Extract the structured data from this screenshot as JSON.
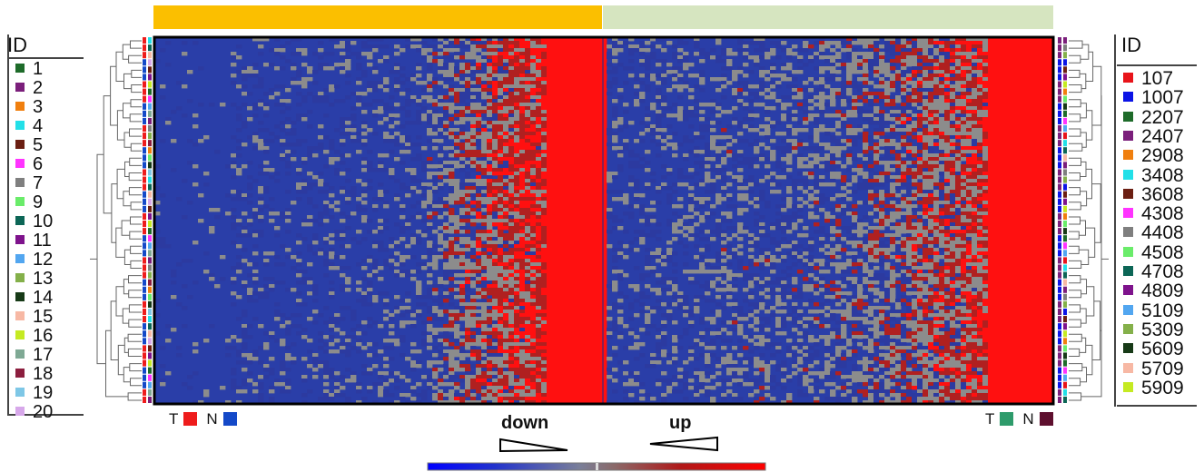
{
  "chart_data": {
    "type": "heatmap",
    "title": "",
    "column_groups": [
      {
        "name": "down",
        "color": "#fbbf00"
      },
      {
        "name": "up",
        "color": "#d6e5c0"
      }
    ],
    "color_scale": [
      "#1a1aff",
      "#2c3aa0",
      "#8c8c8c",
      "#b02020",
      "#ff1010"
    ],
    "direction_labels": {
      "down": "down",
      "up": "up"
    },
    "left_legend": {
      "title": "ID",
      "items": [
        {
          "label": "1",
          "color": "#1e6b2a"
        },
        {
          "label": "2",
          "color": "#7b1f7b"
        },
        {
          "label": "3",
          "color": "#f07f0e"
        },
        {
          "label": "4",
          "color": "#22e0e8"
        },
        {
          "label": "5",
          "color": "#6b1e12"
        },
        {
          "label": "6",
          "color": "#ff33ff"
        },
        {
          "label": "7",
          "color": "#7f7f7f"
        },
        {
          "label": "9",
          "color": "#6aec6a"
        },
        {
          "label": "10",
          "color": "#0c6656"
        },
        {
          "label": "11",
          "color": "#7e138c"
        },
        {
          "label": "12",
          "color": "#52a6f0"
        },
        {
          "label": "13",
          "color": "#84b04a"
        },
        {
          "label": "14",
          "color": "#173a17"
        },
        {
          "label": "15",
          "color": "#f7b8a4"
        },
        {
          "label": "16",
          "color": "#c5ea22"
        },
        {
          "label": "17",
          "color": "#7fa994"
        },
        {
          "label": "18",
          "color": "#8c1e3e"
        },
        {
          "label": "19",
          "color": "#7ec7e6"
        },
        {
          "label": "20",
          "color": "#d7a8ea"
        }
      ]
    },
    "right_legend": {
      "title": "ID",
      "items": [
        {
          "label": "107",
          "color": "#e8141a"
        },
        {
          "label": "1007",
          "color": "#0b14e6"
        },
        {
          "label": "2207",
          "color": "#1e6b2a"
        },
        {
          "label": "2407",
          "color": "#7b1f7b"
        },
        {
          "label": "2908",
          "color": "#f07f0e"
        },
        {
          "label": "3408",
          "color": "#22e0e8"
        },
        {
          "label": "3608",
          "color": "#6b1e12"
        },
        {
          "label": "4308",
          "color": "#ff33ff"
        },
        {
          "label": "4408",
          "color": "#7f7f7f"
        },
        {
          "label": "4508",
          "color": "#6aec6a"
        },
        {
          "label": "4708",
          "color": "#0c6656"
        },
        {
          "label": "4809",
          "color": "#7e138c"
        },
        {
          "label": "5109",
          "color": "#52a6f0"
        },
        {
          "label": "5309",
          "color": "#84b04a"
        },
        {
          "label": "5609",
          "color": "#173a17"
        },
        {
          "label": "5709",
          "color": "#f7b8a4"
        },
        {
          "label": "5909",
          "color": "#c5ea22"
        }
      ]
    },
    "sample_type_left": [
      {
        "label": "T",
        "color": "#ee1c1c"
      },
      {
        "label": "N",
        "color": "#1449c8"
      }
    ],
    "sample_type_right": [
      {
        "label": "T",
        "color": "#2e9b6b"
      },
      {
        "label": "N",
        "color": "#5e0f2e"
      }
    ]
  }
}
